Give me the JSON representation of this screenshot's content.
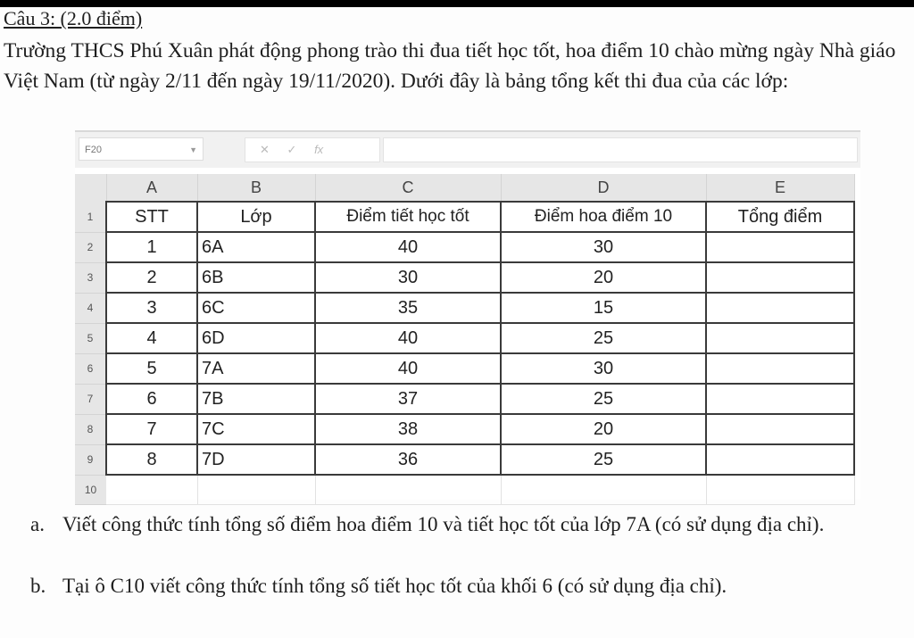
{
  "question": {
    "title": "Câu 3: (2.0 điểm)",
    "intro": "Trường THCS Phú Xuân phát động phong trào thi đua tiết học tốt, hoa điểm 10 chào mừng ngày Nhà giáo Việt Nam (từ ngày 2/11 đến ngày 19/11/2020). Dưới đây là bảng tổng kết thi đua của các lớp:"
  },
  "spreadsheet": {
    "name_box": "F20",
    "formula_icons": [
      "cancel-icon",
      "enter-icon",
      "function-icon"
    ],
    "formula_cancel": "✕",
    "formula_enter": "✓",
    "formula_fx": "fx",
    "column_letters": [
      "A",
      "B",
      "C",
      "D",
      "E"
    ],
    "row_numbers": [
      "1",
      "2",
      "3",
      "4",
      "5",
      "6",
      "7",
      "8",
      "9",
      "10"
    ],
    "headers": [
      "STT",
      "Lớp",
      "Điểm tiết học tốt",
      "Điểm hoa điểm 10",
      "Tổng điểm"
    ],
    "rows": [
      [
        "1",
        "6A",
        "40",
        "30",
        ""
      ],
      [
        "2",
        "6B",
        "30",
        "20",
        ""
      ],
      [
        "3",
        "6C",
        "35",
        "15",
        ""
      ],
      [
        "4",
        "6D",
        "40",
        "25",
        ""
      ],
      [
        "5",
        "7A",
        "40",
        "30",
        ""
      ],
      [
        "6",
        "7B",
        "37",
        "25",
        ""
      ],
      [
        "7",
        "7C",
        "38",
        "20",
        ""
      ],
      [
        "8",
        "7D",
        "36",
        "25",
        ""
      ]
    ]
  },
  "tasks": [
    {
      "label": "a.",
      "text": "Viết công thức tính tổng số điểm hoa điểm 10 và tiết học tốt của lớp 7A (có sử dụng địa chỉ)."
    },
    {
      "label": "b.",
      "text": "Tại ô C10 viết công thức tính tổng số tiết học tốt của khối 6 (có sử dụng địa chỉ)."
    }
  ]
}
